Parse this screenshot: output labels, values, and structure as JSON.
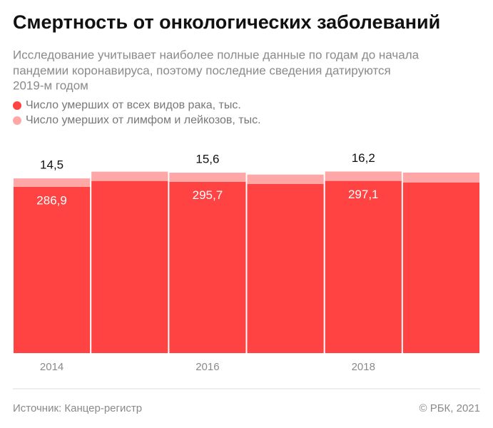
{
  "chart_data": {
    "type": "stacked-bar",
    "title": "Смертность от онкологических заболеваний",
    "subtitle": [
      "Исследование учитывает наиболее полные данные по годам до начала",
      "пандемии коронавируса, поэтому последние сведения датируются",
      "2019-м годом"
    ],
    "categories": [
      "2014",
      null,
      "2016",
      null,
      "2018",
      null
    ],
    "series": [
      {
        "name": "Число умерших от всех видов рака, тыс.",
        "color": "#ff4242",
        "values": [
          286.9,
          297,
          295.7,
          292,
          297.1,
          294.5
        ],
        "value_labels": [
          "286,9",
          null,
          "295,7",
          null,
          "297,1",
          null
        ]
      },
      {
        "name": "Число умерших от лимфом и лейкозов, тыс.",
        "color": "#ffa6a6",
        "values": [
          14.5,
          16,
          15.6,
          16,
          16.2,
          17
        ],
        "value_labels": [
          "14,5",
          null,
          "15,6",
          null,
          "16,2",
          null
        ]
      }
    ],
    "ylim": [
      0,
      320
    ],
    "source": "Источник: Канцер-регистр",
    "copyright": "© РБК, 2021"
  }
}
